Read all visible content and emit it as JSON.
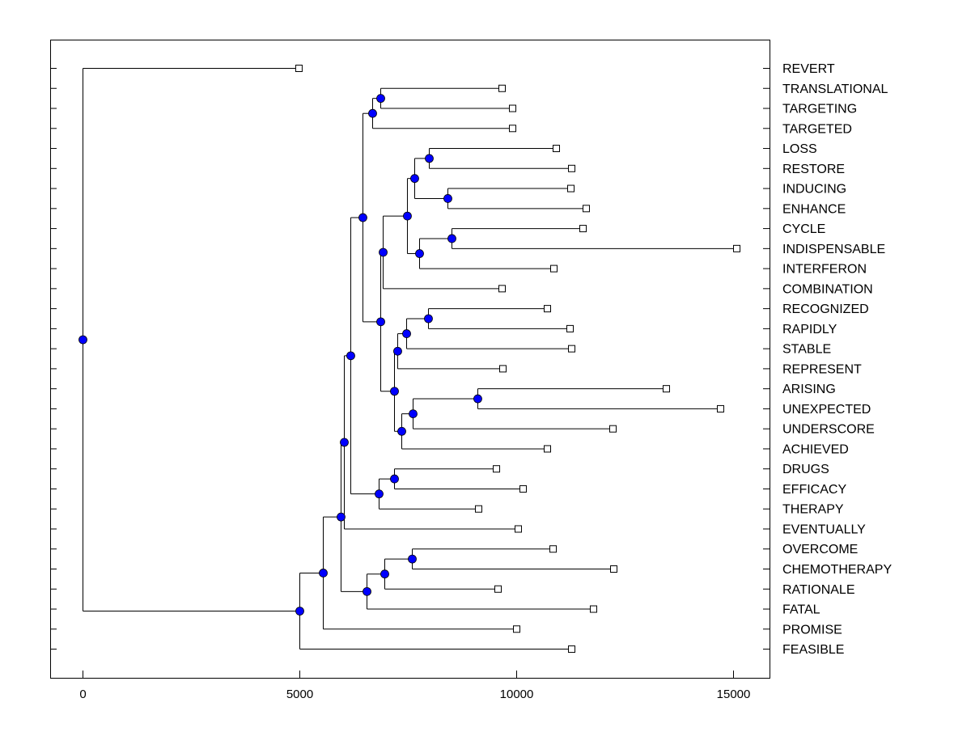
{
  "chart_data": {
    "type": "dendrogram",
    "title": "",
    "xlabel": "",
    "ylabel": "",
    "xlim": [
      -750,
      15950
    ],
    "xticks": [
      0,
      5000,
      10000,
      15000
    ],
    "xtick_labels": [
      "0",
      "5000",
      "10000",
      "15000"
    ],
    "grid": false,
    "colors": {
      "node": "#0000ff",
      "leaf": "#ffffff",
      "line": "#000000"
    },
    "tree": {
      "h": 0,
      "c": [
        {
          "leaf": "REVERT",
          "h": 4980
        },
        {
          "h": 5000,
          "c": [
            {
              "h": 5541,
              "c": [
                {
                  "h": 5951,
                  "c": [
                    {
                      "h": 6026,
                      "c": [
                        {
                          "h": 6175,
                          "c": [
                            {
                              "h": 6455,
                              "c": [
                                {
                                  "h": 6679,
                                  "c": [
                                    {
                                      "h": 6866,
                                      "c": [
                                        {
                                          "leaf": "TRANSLATIONAL",
                                          "h": 9664
                                        },
                                        {
                                          "leaf": "TARGETING",
                                          "h": 9907
                                        }
                                      ]
                                    },
                                    {
                                      "leaf": "TARGETED",
                                      "h": 9907
                                    }
                                  ]
                                },
                                {
                                  "h": 6866,
                                  "c": [
                                    {
                                      "h": 6922,
                                      "c": [
                                        {
                                          "h": 7481,
                                          "c": [
                                            {
                                              "h": 7649,
                                              "c": [
                                                {
                                                  "h": 7985,
                                                  "c": [
                                                    {
                                                      "leaf": "LOSS",
                                                      "h": 10914
                                                    },
                                                    {
                                                      "leaf": "RESTORE",
                                                      "h": 11269
                                                    }
                                                  ]
                                                },
                                                {
                                                  "h": 8414,
                                                  "c": [
                                                    {
                                                      "leaf": "INDUCING",
                                                      "h": 11250
                                                    },
                                                    {
                                                      "leaf": "ENHANCE",
                                                      "h": 11604
                                                    }
                                                  ]
                                                }
                                              ]
                                            },
                                            {
                                              "h": 7761,
                                              "c": [
                                                {
                                                  "h": 8507,
                                                  "c": [
                                                    {
                                                      "leaf": "CYCLE",
                                                      "h": 11530
                                                    },
                                                    {
                                                      "leaf": "INDISPENSABLE",
                                                      "h": 15075
                                                    }
                                                  ]
                                                },
                                                {
                                                  "leaf": "INTERFERON",
                                                  "h": 10858
                                                }
                                              ]
                                            }
                                          ]
                                        },
                                        {
                                          "leaf": "COMBINATION",
                                          "h": 9664
                                        }
                                      ]
                                    },
                                    {
                                      "h": 7183,
                                      "c": [
                                        {
                                          "h": 7257,
                                          "c": [
                                            {
                                              "h": 7463,
                                              "c": [
                                                {
                                                  "h": 7966,
                                                  "c": [
                                                    {
                                                      "leaf": "RECOGNIZED",
                                                      "h": 10709
                                                    },
                                                    {
                                                      "leaf": "RAPIDLY",
                                                      "h": 11231
                                                    }
                                                  ]
                                                },
                                                {
                                                  "leaf": "STABLE",
                                                  "h": 11269
                                                }
                                              ]
                                            },
                                            {
                                              "leaf": "REPRESENT",
                                              "h": 9683
                                            }
                                          ]
                                        },
                                        {
                                          "h": 7351,
                                          "c": [
                                            {
                                              "h": 7612,
                                              "c": [
                                                {
                                                  "h": 9104,
                                                  "c": [
                                                    {
                                                      "leaf": "ARISING",
                                                      "h": 13451
                                                    },
                                                    {
                                                      "leaf": "UNEXPECTED",
                                                      "h": 14701
                                                    }
                                                  ]
                                                },
                                                {
                                                  "leaf": "UNDERSCORE",
                                                  "h": 12220
                                                }
                                              ]
                                            },
                                            {
                                              "leaf": "ACHIEVED",
                                              "h": 10709
                                            }
                                          ]
                                        }
                                      ]
                                    }
                                  ]
                                }
                              ]
                            },
                            {
                              "h": 6828,
                              "c": [
                                {
                                  "h": 7183,
                                  "c": [
                                    {
                                      "leaf": "DRUGS",
                                      "h": 9534
                                    },
                                    {
                                      "leaf": "EFFICACY",
                                      "h": 10149
                                    }
                                  ]
                                },
                                {
                                  "leaf": "THERAPY",
                                  "h": 9123
                                }
                              ]
                            }
                          ]
                        },
                        {
                          "leaf": "EVENTUALLY",
                          "h": 10037
                        }
                      ]
                    },
                    {
                      "h": 6549,
                      "c": [
                        {
                          "h": 6959,
                          "c": [
                            {
                              "h": 7593,
                              "c": [
                                {
                                  "leaf": "OVERCOME",
                                  "h": 10840
                                },
                                {
                                  "leaf": "CHEMOTHERAPY",
                                  "h": 12239
                                }
                              ]
                            },
                            {
                              "leaf": "RATIONALE",
                              "h": 9571
                            }
                          ]
                        },
                        {
                          "leaf": "FATAL",
                          "h": 11772
                        }
                      ]
                    }
                  ]
                },
                {
                  "leaf": "PROMISE",
                  "h": 10000
                }
              ]
            },
            {
              "leaf": "FEASIBLE",
              "h": 11269
            }
          ]
        }
      ]
    }
  }
}
